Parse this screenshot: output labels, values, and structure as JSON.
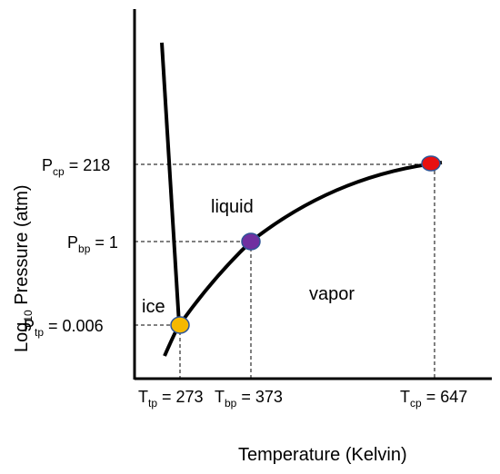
{
  "axes": {
    "y_label": {
      "prefix": "Log",
      "sub": "10",
      "rest": " Pressure (atm)"
    },
    "x_label": "Temperature (Kelvin)"
  },
  "regions": {
    "ice": "ice",
    "liquid": "liquid",
    "vapor": "vapor"
  },
  "points": {
    "triple": {
      "p_sym": "P",
      "p_sub": "tp",
      "p_val": " = 0.006",
      "t_sym": "T",
      "t_sub": "tp",
      "t_val": " = 273",
      "color": "#f5b800"
    },
    "boiling": {
      "p_sym": "P",
      "p_sub": "bp",
      "p_val": " = 1",
      "t_sym": "T",
      "t_sub": "bp",
      "t_val": " = 373",
      "color": "#7030a0"
    },
    "critical": {
      "p_sym": "P",
      "p_sub": "cp",
      "p_val": " = 218",
      "t_sym": "T",
      "t_sub": "cp",
      "t_val": " = 647",
      "color": "#e81010"
    }
  },
  "colors": {
    "curve": "#000000",
    "point_outline": "#2f5597"
  }
}
